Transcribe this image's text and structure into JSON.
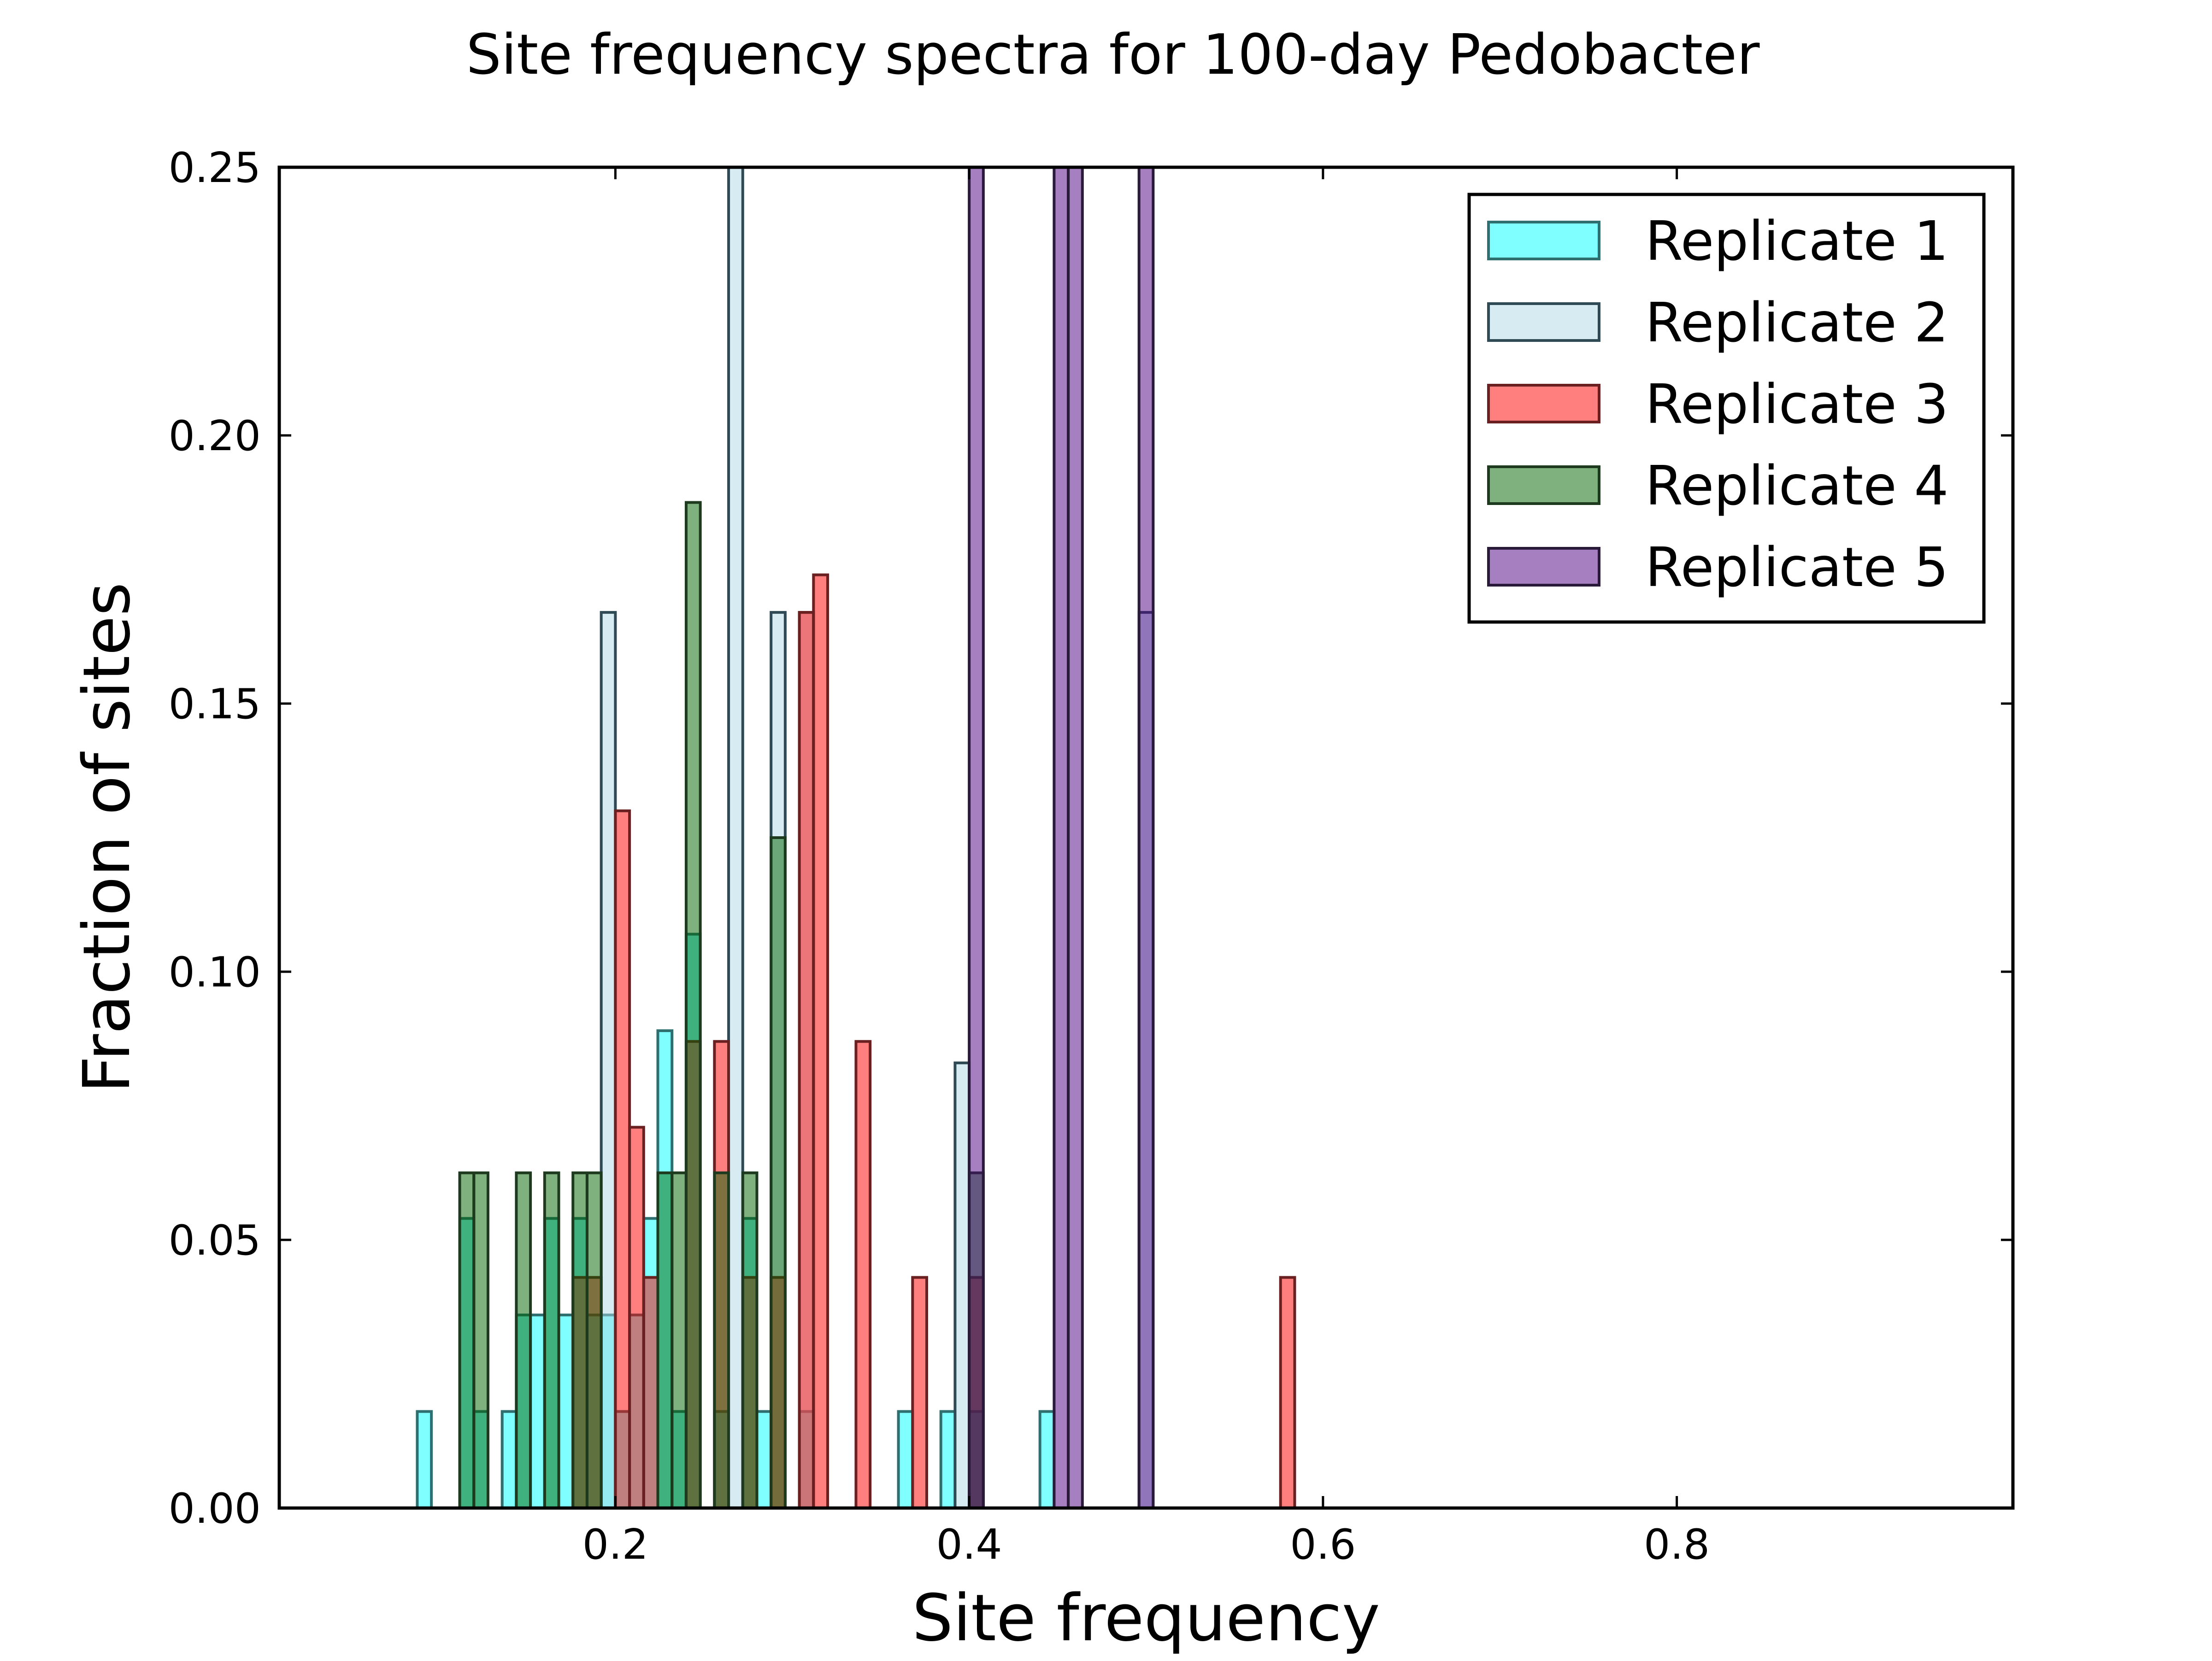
{
  "chart_data": {
    "type": "bar",
    "subtype": "histogram",
    "title": "Site frequency spectra for 100-day Pedobacter",
    "xlabel": "Site frequency",
    "ylabel": "Fraction of sites",
    "xlim": [
      0.01,
      0.99
    ],
    "ylim": [
      0.0,
      0.25
    ],
    "bin_width": 0.008,
    "x_ticks": [
      0.2,
      0.4,
      0.6,
      0.8
    ],
    "x_tick_labels": [
      "0.2",
      "0.4",
      "0.6",
      "0.8"
    ],
    "y_ticks": [
      0.0,
      0.05,
      0.1,
      0.15,
      0.2,
      0.25
    ],
    "y_tick_labels": [
      "0.00",
      "0.05",
      "0.10",
      "0.15",
      "0.20",
      "0.25"
    ],
    "legend_position": "top-right",
    "series": [
      {
        "name": "Replicate 1",
        "color": "#00ffff",
        "edge": "#2f6f6f",
        "bins": [
          {
            "x": 0.088,
            "y": 0.018
          },
          {
            "x": 0.112,
            "y": 0.054
          },
          {
            "x": 0.12,
            "y": 0.018
          },
          {
            "x": 0.136,
            "y": 0.018
          },
          {
            "x": 0.144,
            "y": 0.036
          },
          {
            "x": 0.152,
            "y": 0.036
          },
          {
            "x": 0.16,
            "y": 0.054
          },
          {
            "x": 0.168,
            "y": 0.036
          },
          {
            "x": 0.176,
            "y": 0.054
          },
          {
            "x": 0.184,
            "y": 0.036
          },
          {
            "x": 0.192,
            "y": 0.036
          },
          {
            "x": 0.2,
            "y": 0.018
          },
          {
            "x": 0.208,
            "y": 0.036
          },
          {
            "x": 0.216,
            "y": 0.054
          },
          {
            "x": 0.224,
            "y": 0.089
          },
          {
            "x": 0.232,
            "y": 0.018
          },
          {
            "x": 0.24,
            "y": 0.107
          },
          {
            "x": 0.256,
            "y": 0.018
          },
          {
            "x": 0.272,
            "y": 0.054
          },
          {
            "x": 0.28,
            "y": 0.018
          },
          {
            "x": 0.304,
            "y": 0.018
          },
          {
            "x": 0.36,
            "y": 0.018
          },
          {
            "x": 0.384,
            "y": 0.018
          },
          {
            "x": 0.4,
            "y": 0.018
          },
          {
            "x": 0.44,
            "y": 0.018
          }
        ]
      },
      {
        "name": "Replicate 2",
        "color": "#add8e6",
        "edge": "#2f4a55",
        "bins": [
          {
            "x": 0.192,
            "y": 0.167
          },
          {
            "x": 0.264,
            "y": 0.25
          },
          {
            "x": 0.288,
            "y": 0.167
          },
          {
            "x": 0.304,
            "y": 0.167
          },
          {
            "x": 0.392,
            "y": 0.083
          },
          {
            "x": 0.496,
            "y": 0.167
          }
        ]
      },
      {
        "name": "Replicate 3",
        "color": "#ff0000",
        "edge": "#6a2020",
        "bins": [
          {
            "x": 0.176,
            "y": 0.043
          },
          {
            "x": 0.184,
            "y": 0.043
          },
          {
            "x": 0.2,
            "y": 0.13
          },
          {
            "x": 0.208,
            "y": 0.071
          },
          {
            "x": 0.216,
            "y": 0.043
          },
          {
            "x": 0.24,
            "y": 0.087
          },
          {
            "x": 0.256,
            "y": 0.087
          },
          {
            "x": 0.272,
            "y": 0.043
          },
          {
            "x": 0.288,
            "y": 0.043
          },
          {
            "x": 0.304,
            "y": 0.167
          },
          {
            "x": 0.312,
            "y": 0.174
          },
          {
            "x": 0.336,
            "y": 0.087
          },
          {
            "x": 0.368,
            "y": 0.043
          },
          {
            "x": 0.4,
            "y": 0.043
          },
          {
            "x": 0.576,
            "y": 0.043
          }
        ]
      },
      {
        "name": "Replicate 4",
        "color": "#006400",
        "edge": "#1e3a1e",
        "bins": [
          {
            "x": 0.112,
            "y": 0.0625
          },
          {
            "x": 0.12,
            "y": 0.0625
          },
          {
            "x": 0.144,
            "y": 0.0625
          },
          {
            "x": 0.16,
            "y": 0.0625
          },
          {
            "x": 0.176,
            "y": 0.0625
          },
          {
            "x": 0.184,
            "y": 0.0625
          },
          {
            "x": 0.224,
            "y": 0.0625
          },
          {
            "x": 0.232,
            "y": 0.0625
          },
          {
            "x": 0.24,
            "y": 0.1875
          },
          {
            "x": 0.256,
            "y": 0.0625
          },
          {
            "x": 0.272,
            "y": 0.0625
          },
          {
            "x": 0.288,
            "y": 0.125
          },
          {
            "x": 0.4,
            "y": 0.0625
          }
        ]
      },
      {
        "name": "Replicate 5",
        "color": "#4b0082",
        "edge": "#2a1a3a",
        "bins": [
          {
            "x": 0.4,
            "y": 0.25
          },
          {
            "x": 0.448,
            "y": 0.25
          },
          {
            "x": 0.456,
            "y": 0.25
          },
          {
            "x": 0.496,
            "y": 0.25
          }
        ]
      }
    ]
  }
}
